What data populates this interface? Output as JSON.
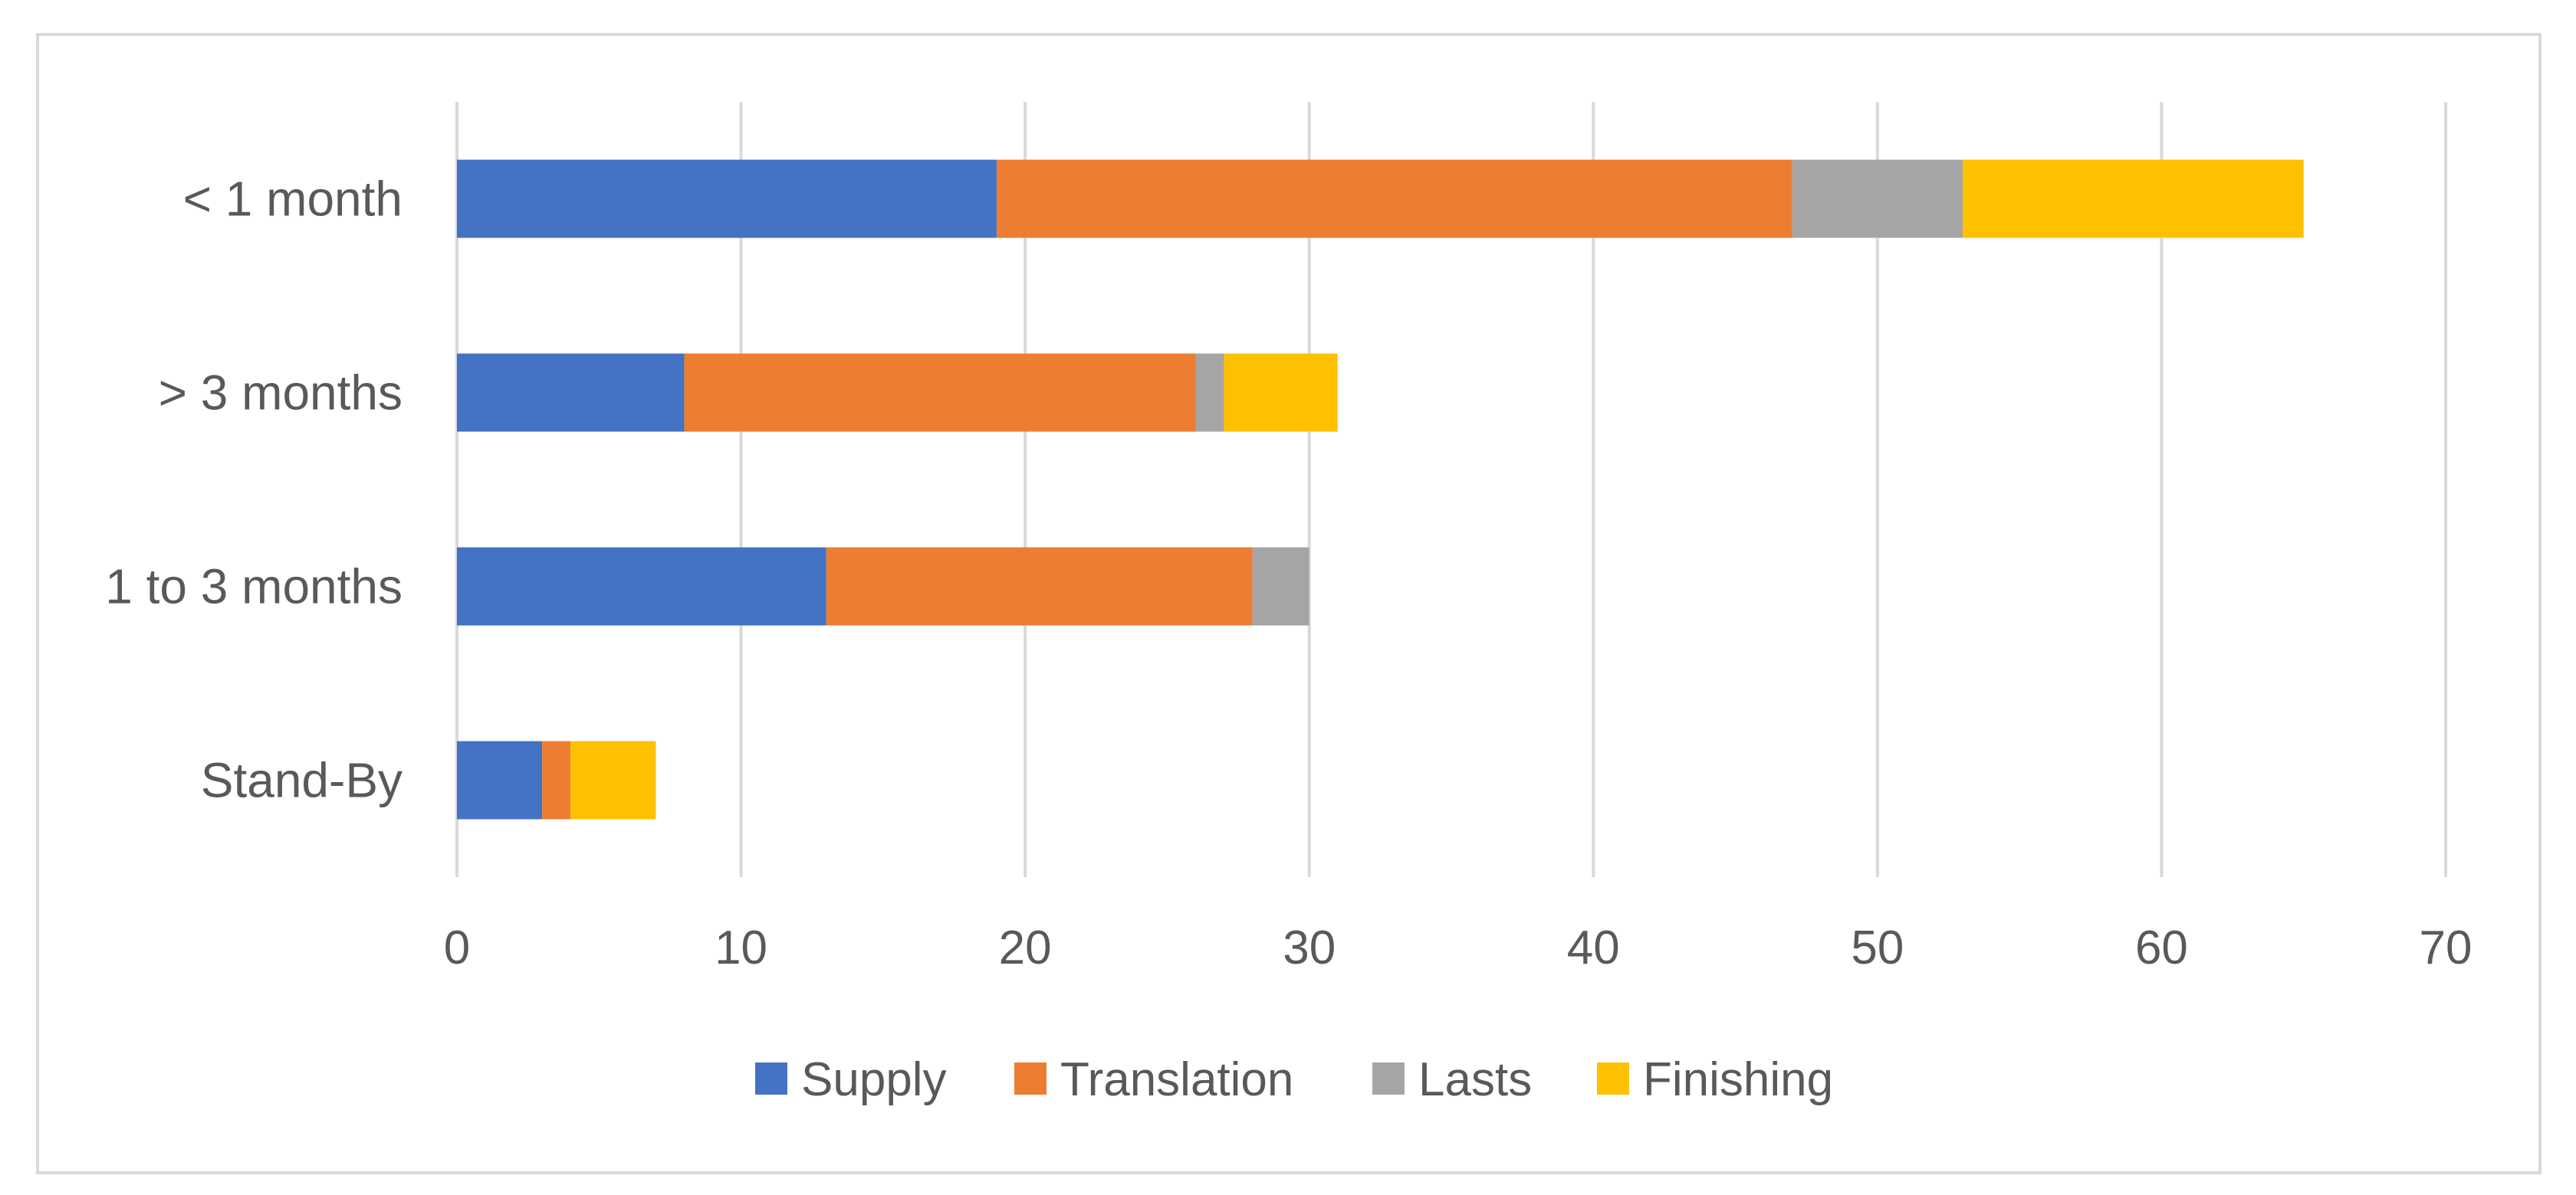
{
  "chart_data": {
    "type": "bar",
    "orientation": "horizontal",
    "stacked": true,
    "title": "",
    "xlabel": "",
    "ylabel": "",
    "categories": [
      "< 1 month",
      "> 3 months",
      "1 to 3 months",
      "Stand-By"
    ],
    "series": [
      {
        "name": "Supply",
        "color": "#4472C4",
        "values": [
          19,
          8,
          13,
          3
        ]
      },
      {
        "name": "Translation",
        "color": "#ED7D31",
        "values": [
          28,
          18,
          15,
          1
        ]
      },
      {
        "name": "Lasts",
        "color": "#A5A5A5",
        "values": [
          6,
          1,
          2,
          0
        ]
      },
      {
        "name": "Finishing",
        "color": "#FFC000",
        "values": [
          12,
          4,
          0,
          3
        ]
      }
    ],
    "xlim": [
      0,
      70
    ],
    "x_ticks": [
      "0",
      "10",
      "20",
      "30",
      "40",
      "50",
      "60",
      "70"
    ],
    "grid": "vertical",
    "legend_position": "bottom"
  }
}
